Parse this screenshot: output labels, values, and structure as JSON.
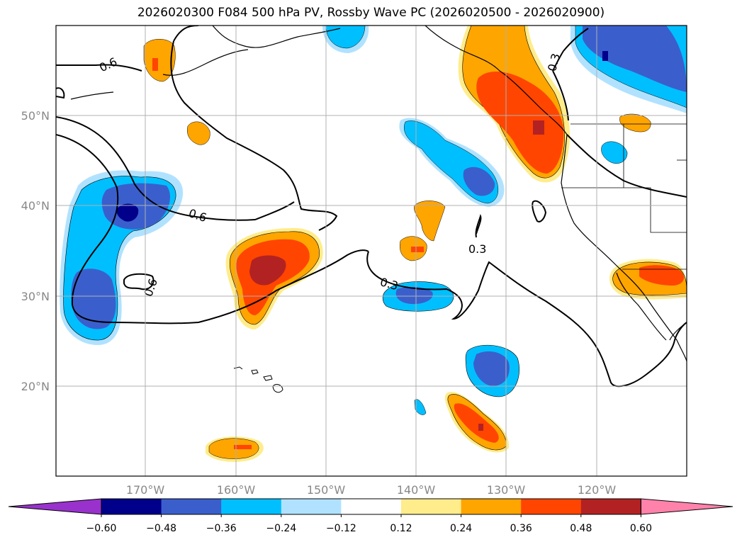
{
  "title": "2026020300 F084 500 hPa PV, Rossby Wave PC (2026020500 - 2026020900)",
  "lat_ticks": [
    "50°N",
    "40°N",
    "30°N",
    "20°N"
  ],
  "lon_ticks": [
    "170°W",
    "160°W",
    "150°W",
    "140°W",
    "130°W",
    "120°W"
  ],
  "colorbar": {
    "ticks": [
      "−0.60",
      "−0.48",
      "−0.36",
      "−0.24",
      "−0.12",
      "0.12",
      "0.24",
      "0.36",
      "0.48",
      "0.60"
    ],
    "colors": [
      "#9932cc",
      "#00008b",
      "#3a5fcd",
      "#00bfff",
      "#b0e2ff",
      "#ffffff",
      "#ffec8b",
      "#ffa500",
      "#ff4500",
      "#b22222",
      "#ff82ab"
    ]
  },
  "contour_labels": [
    "0.6",
    "0.6",
    "0.6",
    "0.3",
    "0.3",
    "0.3"
  ],
  "chart_data": {
    "type": "map",
    "title": "2026020300 F084 500 hPa PV, Rossby Wave PC (2026020500 - 2026020900)",
    "xlim": [
      "180°W",
      "110°W"
    ],
    "ylim": [
      "10°N",
      "60°N"
    ],
    "field": "Rossby Wave PC (shaded)",
    "contours": "500 hPa PV (0.3, 0.6)",
    "levels": [
      -0.6,
      -0.48,
      -0.36,
      -0.24,
      -0.12,
      0.12,
      0.24,
      0.36,
      0.48,
      0.6
    ],
    "grid": true
  }
}
